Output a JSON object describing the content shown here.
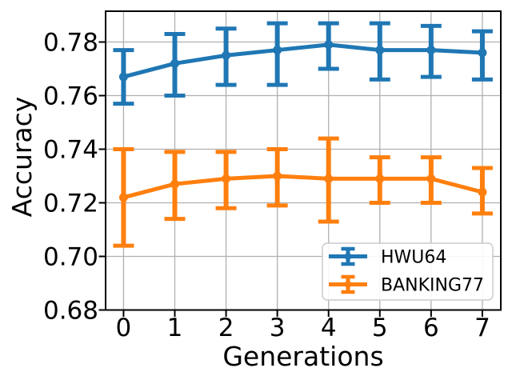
{
  "chart_data": {
    "type": "line",
    "title": "",
    "xlabel": "Generations",
    "ylabel": "Accuracy",
    "x": [
      0,
      1,
      2,
      3,
      4,
      5,
      6,
      7
    ],
    "xtick_labels": [
      "0",
      "1",
      "2",
      "3",
      "4",
      "5",
      "6",
      "7"
    ],
    "yticks": [
      0.68,
      0.7,
      0.72,
      0.74,
      0.76,
      0.78
    ],
    "ytick_labels": [
      "0.68",
      "0.70",
      "0.72",
      "0.74",
      "0.76",
      "0.78"
    ],
    "xlim": [
      -0.35,
      7.36
    ],
    "ylim": [
      0.68,
      0.7915
    ],
    "grid": true,
    "legend_position": "lower right",
    "series": [
      {
        "name": "HWU64",
        "color": "#1f77b4",
        "values": [
          0.767,
          0.772,
          0.775,
          0.777,
          0.779,
          0.777,
          0.777,
          0.776
        ],
        "err_lower": [
          0.757,
          0.76,
          0.764,
          0.764,
          0.77,
          0.766,
          0.767,
          0.766
        ],
        "err_upper": [
          0.777,
          0.783,
          0.785,
          0.787,
          0.787,
          0.787,
          0.786,
          0.784
        ]
      },
      {
        "name": "BANKING77",
        "color": "#ff7f0e",
        "values": [
          0.722,
          0.727,
          0.729,
          0.73,
          0.729,
          0.729,
          0.729,
          0.724
        ],
        "err_lower": [
          0.704,
          0.714,
          0.718,
          0.719,
          0.713,
          0.72,
          0.72,
          0.716
        ],
        "err_upper": [
          0.74,
          0.739,
          0.739,
          0.74,
          0.744,
          0.737,
          0.737,
          0.733
        ]
      }
    ]
  },
  "colors": {
    "background": "#ffffff",
    "grid": "#b0b0b0",
    "spine": "#000000",
    "tick": "#000000",
    "text": "#000000",
    "legend_border": "#cccccc",
    "legend_background": "#ffffff"
  }
}
